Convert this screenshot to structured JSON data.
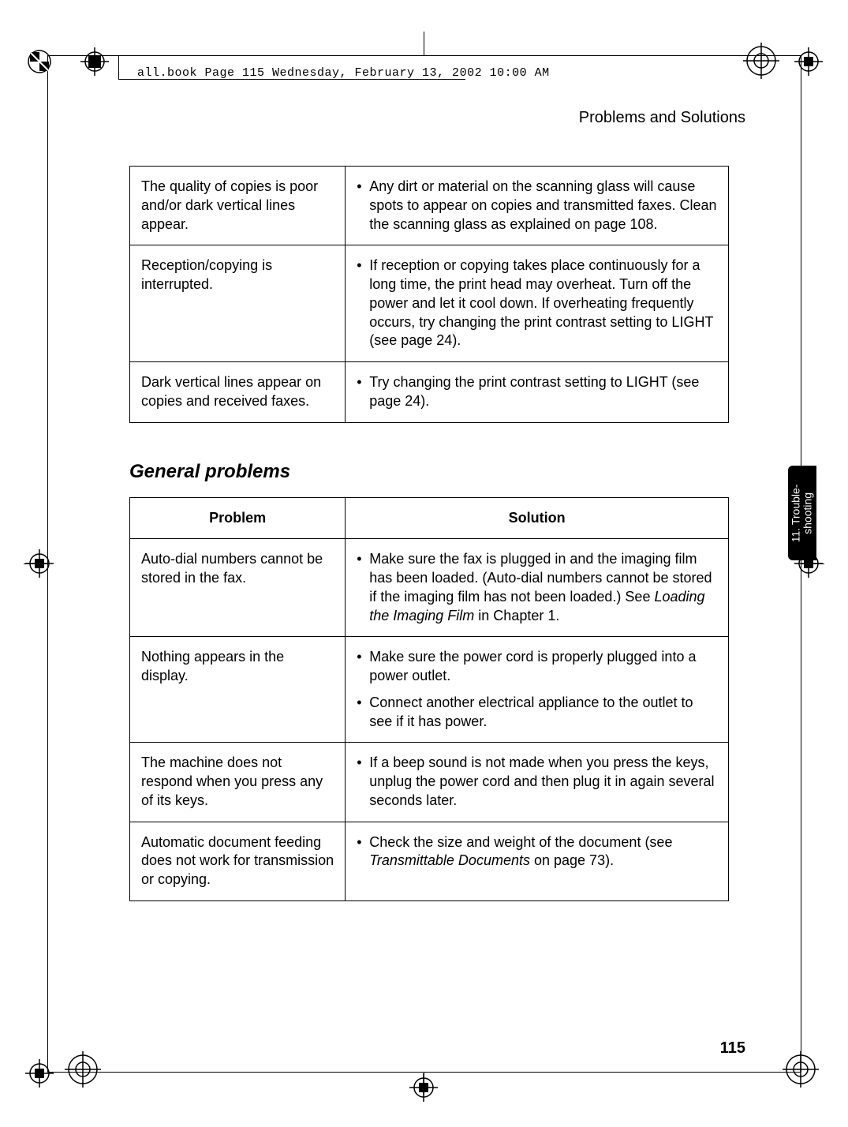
{
  "header_file": "all.book  Page 115  Wednesday, February 13, 2002  10:00 AM",
  "section_title": "Problems and Solutions",
  "page_number": "115",
  "side_tab_line1": "11. Trouble-",
  "side_tab_line2": "shooting",
  "table_top": {
    "rows": [
      {
        "problem": "The quality of copies is poor and/or dark vertical lines appear.",
        "solutions": [
          "Any dirt or material on the scanning glass will cause spots to appear on copies and transmitted faxes. Clean the scanning glass as explained on page 108."
        ]
      },
      {
        "problem": "Reception/copying is interrupted.",
        "solutions": [
          "If reception or copying takes place continuously for a long time, the print head may overheat. Turn off the power and let it cool down. If overheating frequently occurs, try changing the print contrast setting to LIGHT (see page 24)."
        ]
      },
      {
        "problem": "Dark vertical lines appear on copies and received faxes.",
        "solutions": [
          "Try changing the print contrast setting to LIGHT (see page 24)."
        ]
      }
    ]
  },
  "general_heading": "General problems",
  "table_general": {
    "header_problem": "Problem",
    "header_solution": "Solution",
    "rows": [
      {
        "problem": "Auto-dial numbers cannot be stored in the fax.",
        "solutions": [
          {
            "pre": "Make sure the fax is plugged in and the imaging film has been loaded. (Auto-dial numbers cannot be stored if the imaging film has not been loaded.) See ",
            "italic": "Loading the Imaging Film",
            "post": " in Chapter 1."
          }
        ]
      },
      {
        "problem": "Nothing appears in the display.",
        "solutions": [
          {
            "pre": "Make sure the power cord is properly plugged into a power outlet.",
            "italic": "",
            "post": ""
          },
          {
            "pre": "Connect another electrical appliance to the outlet to see if it has power.",
            "italic": "",
            "post": ""
          }
        ]
      },
      {
        "problem": "The machine does not respond when you press any of its keys.",
        "solutions": [
          {
            "pre": "If a beep sound is not made when you press the keys, unplug the power cord and then plug it in again several seconds later.",
            "italic": "",
            "post": ""
          }
        ]
      },
      {
        "problem": "Automatic document feeding does not work for transmission or copying.",
        "solutions": [
          {
            "pre": "Check the size and weight of the document (see ",
            "italic": "Transmittable Documents",
            "post": " on page 73)."
          }
        ]
      }
    ]
  }
}
